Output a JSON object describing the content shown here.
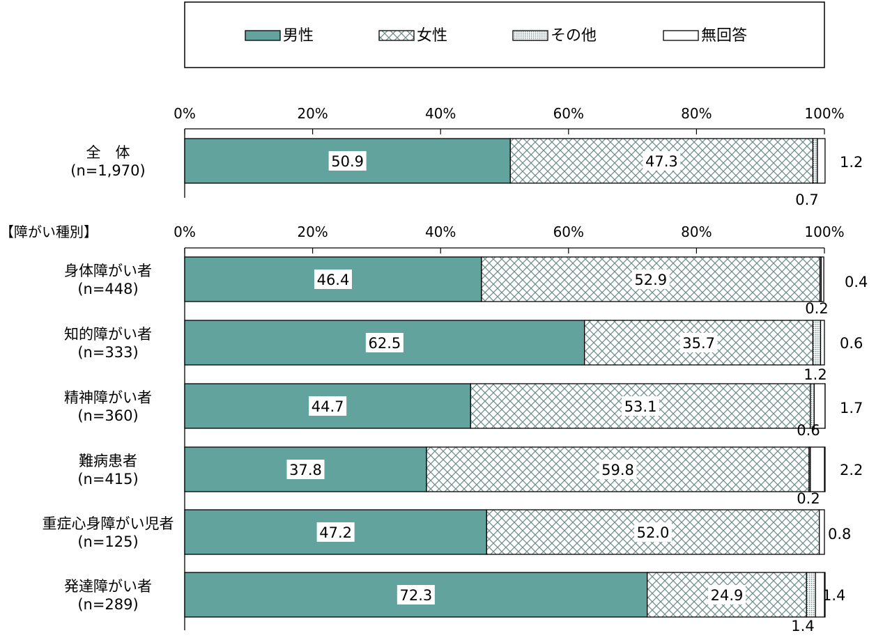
{
  "chart_data": {
    "type": "bar",
    "orientation": "horizontal",
    "stacked": true,
    "percent_axis": true,
    "xlim": [
      0,
      100
    ],
    "x_ticks": [
      "0%",
      "20%",
      "40%",
      "60%",
      "80%",
      "100%"
    ],
    "legend": {
      "position": "top",
      "items": [
        {
          "label": "男性",
          "color": "#63a39d",
          "pattern": "solid"
        },
        {
          "label": "女性",
          "color": "#ffffff",
          "pattern": "crosshatch"
        },
        {
          "label": "その他",
          "color": "#ffffff",
          "pattern": "dots"
        },
        {
          "label": "無回答",
          "color": "#ffffff",
          "pattern": "none"
        }
      ]
    },
    "section_label": "【障がい種別】",
    "series_names": [
      "男性",
      "女性",
      "その他",
      "無回答"
    ],
    "categories": [
      {
        "name": "全　体",
        "n": "(n=1,970)",
        "values": [
          50.9,
          47.3,
          0.7,
          1.2
        ],
        "labels": [
          "50.9",
          "47.3",
          "0.7",
          "1.2"
        ]
      },
      {
        "name": "身体障がい者",
        "n": "(n=448)",
        "values": [
          46.4,
          52.9,
          0.2,
          0.4
        ],
        "labels": [
          "46.4",
          "52.9",
          "0.2",
          "0.4"
        ]
      },
      {
        "name": "知的障がい者",
        "n": "(n=333)",
        "values": [
          62.5,
          35.7,
          1.2,
          0.6
        ],
        "labels": [
          "62.5",
          "35.7",
          "1.2",
          "0.6"
        ]
      },
      {
        "name": "精神障がい者",
        "n": "(n=360)",
        "values": [
          44.7,
          53.1,
          0.6,
          1.7
        ],
        "labels": [
          "44.7",
          "53.1",
          "0.6",
          "1.7"
        ]
      },
      {
        "name": "難病患者",
        "n": "(n=415)",
        "values": [
          37.8,
          59.8,
          0.2,
          2.2
        ],
        "labels": [
          "37.8",
          "59.8",
          "0.2",
          "2.2"
        ]
      },
      {
        "name": "重症心身障がい児者",
        "n": "(n=125)",
        "values": [
          47.2,
          52.0,
          0.0,
          0.8
        ],
        "labels": [
          "47.2",
          "52.0",
          "",
          "0.8"
        ]
      },
      {
        "name": "発達障がい者",
        "n": "(n=289)",
        "values": [
          72.3,
          24.9,
          1.4,
          1.4
        ],
        "labels": [
          "72.3",
          "24.9",
          "1.4",
          "1.4"
        ]
      }
    ]
  }
}
